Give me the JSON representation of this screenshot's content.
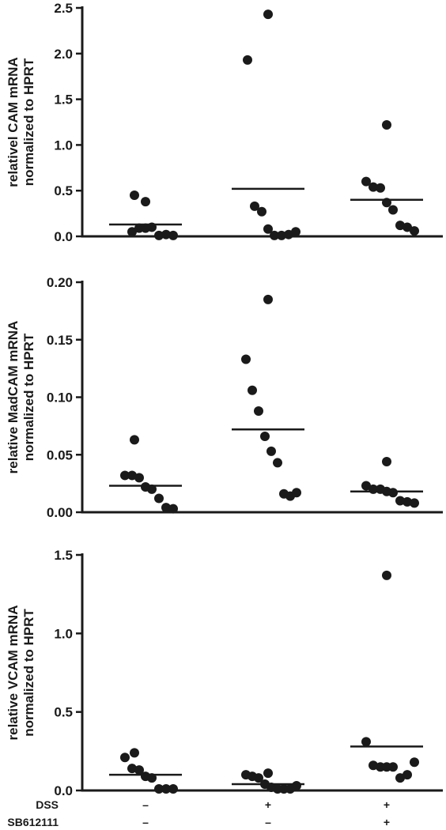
{
  "chart_data": [
    {
      "type": "scatter",
      "ylabel_lines": [
        "relativel CAM mRNA",
        "normalized to HPRT"
      ],
      "ylim": [
        0,
        2.5
      ],
      "yticks": [
        "0.0",
        "0.5",
        "1.0",
        "1.5",
        "2.0",
        "2.5"
      ],
      "tick_values": [
        0,
        0.5,
        1.0,
        1.5,
        2.0,
        2.5
      ],
      "groups": [
        {
          "points": [
            0.45,
            0.38,
            0.05,
            0.09,
            0.09,
            0.1,
            0.01,
            0.02,
            0.01
          ],
          "mean": 0.13
        },
        {
          "points": [
            2.43,
            1.93,
            0.33,
            0.27,
            0.08,
            0.01,
            0.01,
            0.02,
            0.05
          ],
          "mean": 0.52
        },
        {
          "points": [
            1.22,
            0.6,
            0.54,
            0.53,
            0.37,
            0.29,
            0.12,
            0.1,
            0.06
          ],
          "mean": 0.4
        }
      ],
      "grid": false
    },
    {
      "type": "scatter",
      "ylabel_lines": [
        "relative MadCAM mRNA",
        "normalized to HPRT"
      ],
      "ylim": [
        0,
        0.2
      ],
      "yticks": [
        "0.00",
        "0.05",
        "0.10",
        "0.15",
        "0.20"
      ],
      "tick_values": [
        0,
        0.05,
        0.1,
        0.15,
        0.2
      ],
      "groups": [
        {
          "points": [
            0.063,
            0.032,
            0.032,
            0.03,
            0.022,
            0.02,
            0.012,
            0.004,
            0.003
          ],
          "mean": 0.023
        },
        {
          "points": [
            0.185,
            0.133,
            0.106,
            0.088,
            0.066,
            0.053,
            0.043,
            0.016,
            0.014,
            0.017
          ],
          "mean": 0.072
        },
        {
          "points": [
            0.044,
            0.023,
            0.02,
            0.02,
            0.018,
            0.017,
            0.01,
            0.009,
            0.008
          ],
          "mean": 0.018
        }
      ],
      "grid": false
    },
    {
      "type": "scatter",
      "ylabel_lines": [
        "relative VCAM mRNA",
        "normalized to HPRT"
      ],
      "ylim": [
        0,
        1.5
      ],
      "yticks": [
        "0.0",
        "0.5",
        "1.0",
        "1.5"
      ],
      "tick_values": [
        0,
        0.5,
        1.0,
        1.5
      ],
      "groups": [
        {
          "points": [
            0.24,
            0.21,
            0.14,
            0.13,
            0.09,
            0.08,
            0.01,
            0.01,
            0.01
          ],
          "mean": 0.1
        },
        {
          "points": [
            0.11,
            0.1,
            0.09,
            0.08,
            0.04,
            0.02,
            0.01,
            0.01,
            0.01,
            0.03
          ],
          "mean": 0.04
        },
        {
          "points": [
            1.37,
            0.31,
            0.16,
            0.15,
            0.15,
            0.15,
            0.08,
            0.1,
            0.18
          ],
          "mean": 0.28
        }
      ],
      "grid": false
    }
  ],
  "conditions": [
    {
      "label": "DSS",
      "values": [
        "–",
        "+",
        "+"
      ]
    },
    {
      "label": "SB612111",
      "values": [
        "–",
        "–",
        "+"
      ]
    }
  ],
  "colors": {
    "ink": "#1a1a1a",
    "background": "#ffffff"
  }
}
